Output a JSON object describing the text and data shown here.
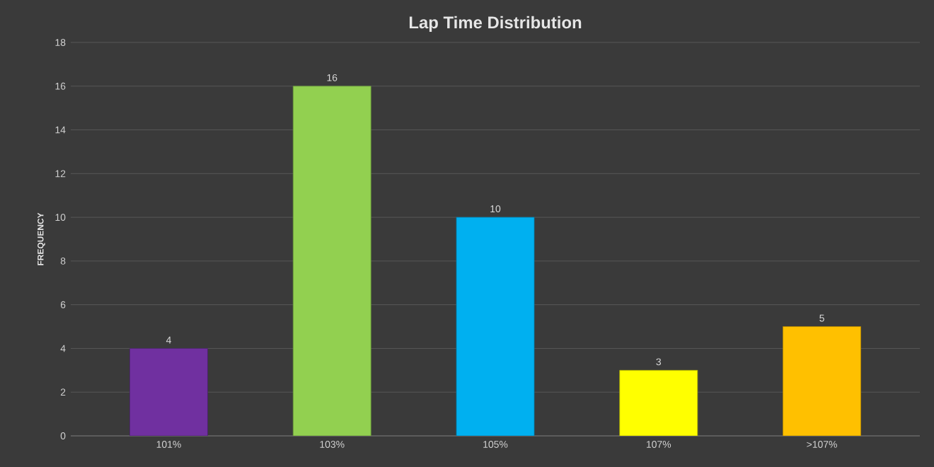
{
  "chart_data": {
    "type": "bar",
    "title": "Lap Time Distribution",
    "ylabel": "FREQUENCY",
    "categories": [
      "101%",
      "103%",
      "105%",
      "107%",
      ">107%"
    ],
    "values": [
      4,
      16,
      10,
      3,
      5
    ],
    "colors": [
      "#7030a0",
      "#92d050",
      "#00b0f0",
      "#ffff00",
      "#ffc000"
    ],
    "ylim": [
      0,
      18
    ],
    "yticks": [
      0,
      2,
      4,
      6,
      8,
      10,
      12,
      14,
      16,
      18
    ],
    "grid": "y",
    "data_labels": true
  }
}
